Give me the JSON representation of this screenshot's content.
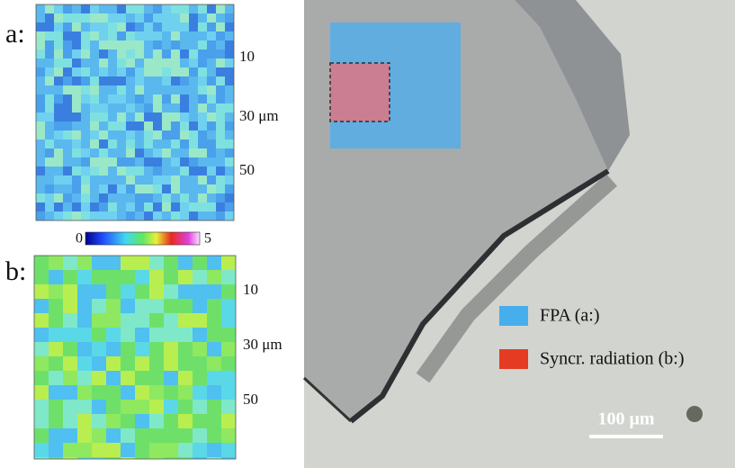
{
  "panel_a": {
    "label": "a:",
    "ticks": [
      "10",
      "30 μm",
      "50"
    ]
  },
  "colorbar": {
    "min_label": "0",
    "max_label": "5"
  },
  "panel_b": {
    "label": "b:",
    "ticks": [
      "10",
      "30 μm",
      "50"
    ]
  },
  "legend": [
    {
      "label": "FPA (a:)"
    },
    {
      "label": "Syncr. radiation (b:)"
    }
  ],
  "scale_bar": "100 μm"
}
